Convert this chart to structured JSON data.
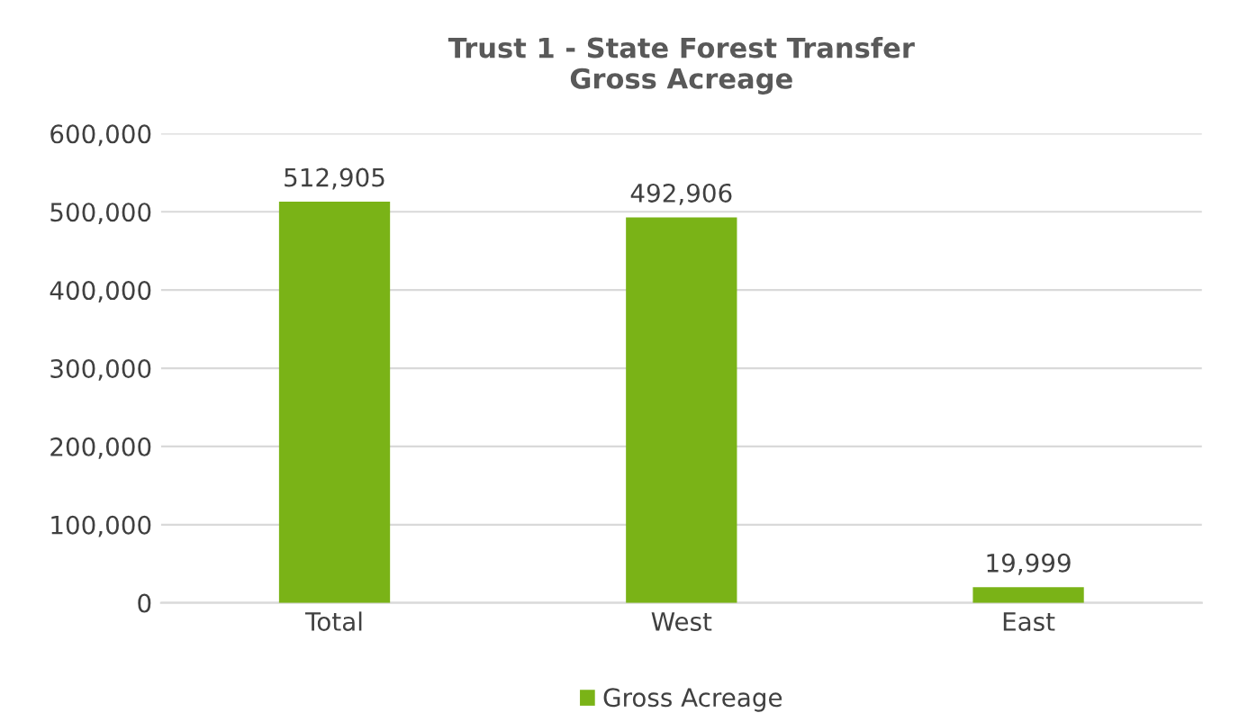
{
  "chart_data": {
    "type": "bar",
    "title": "Trust 1 - State Forest Transfer\nGross Acreage",
    "categories": [
      "Total",
      "West",
      "East"
    ],
    "series": [
      {
        "name": "Gross Acreage",
        "color": "#7ab317",
        "values": [
          512905,
          492906,
          19999
        ],
        "value_labels": [
          "512,905",
          "492,906",
          "19,999"
        ]
      }
    ],
    "ylim": [
      0,
      600000
    ],
    "yticks": [
      {
        "value": 0,
        "label": "0"
      },
      {
        "value": 100000,
        "label": "100,000"
      },
      {
        "value": 200000,
        "label": "200,000"
      },
      {
        "value": 300000,
        "label": "300,000"
      },
      {
        "value": 400000,
        "label": "400,000"
      },
      {
        "value": 500000,
        "label": "500,000"
      },
      {
        "value": 600000,
        "label": "600,000"
      }
    ],
    "grid": "y",
    "legend": "bottom"
  }
}
